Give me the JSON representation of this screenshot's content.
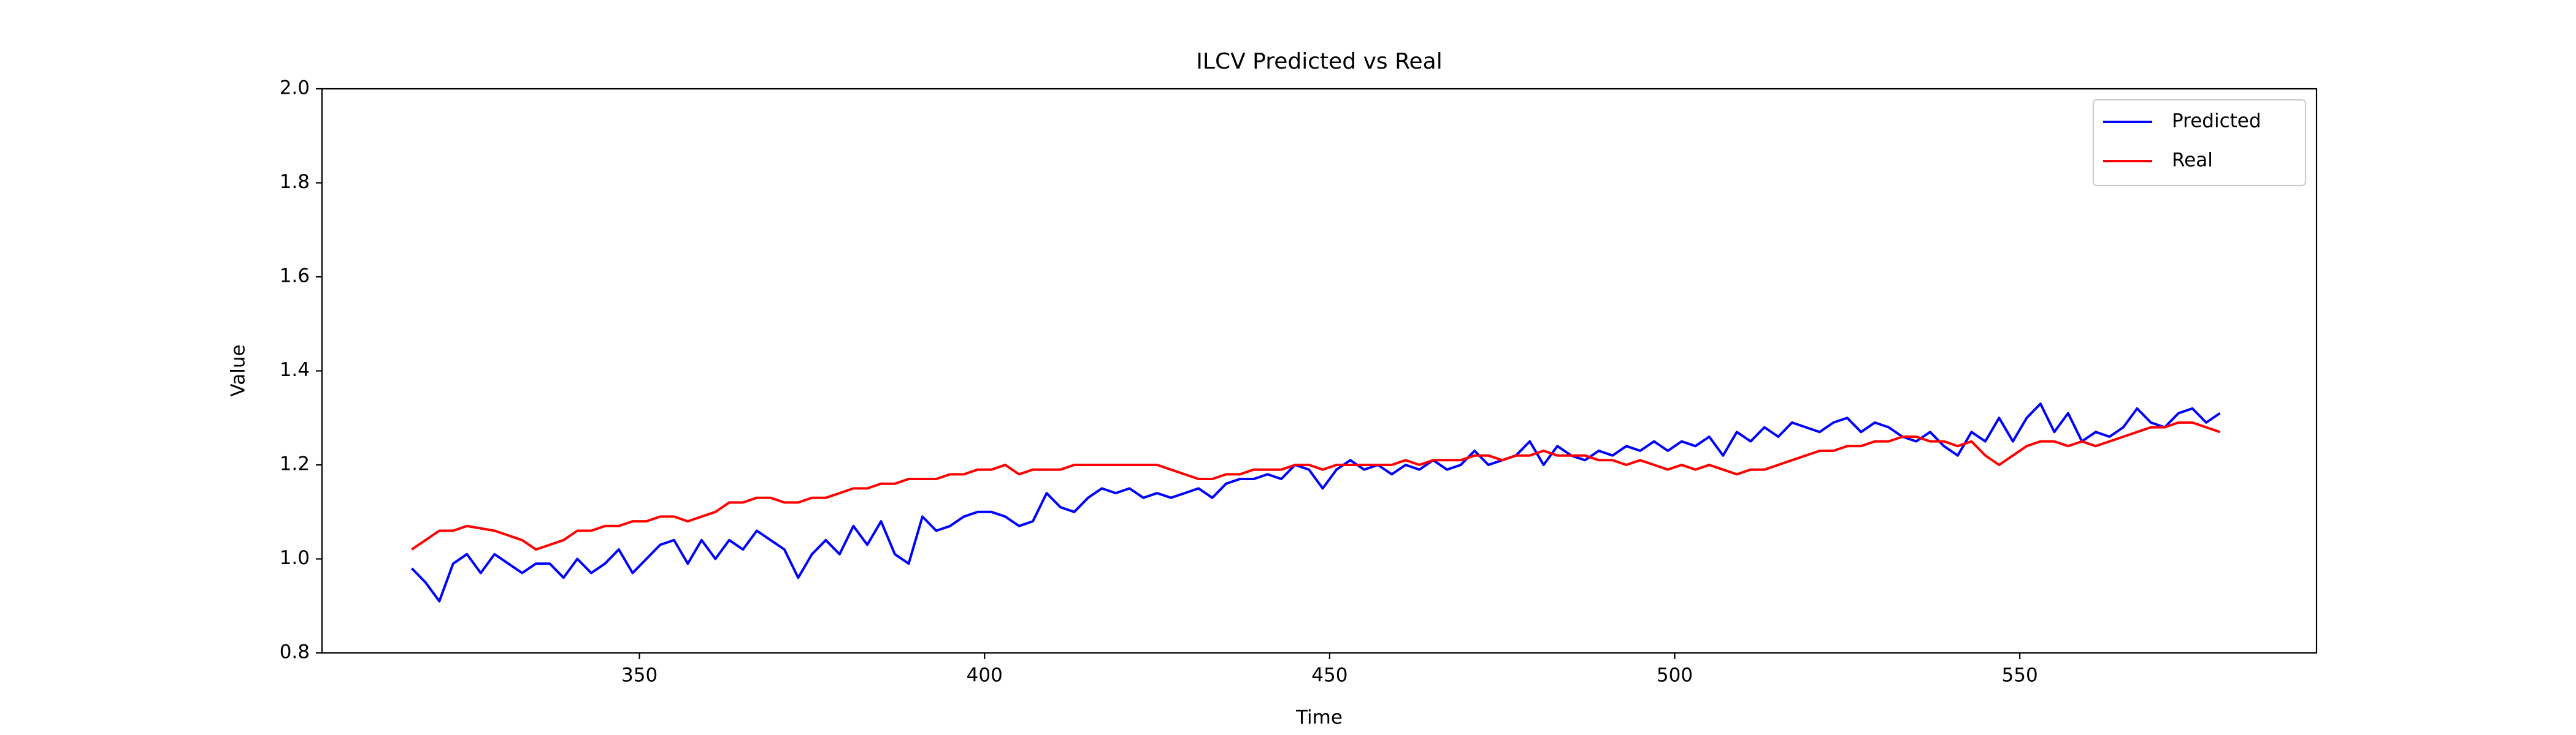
{
  "chart_data": {
    "type": "line",
    "title": "ILCV Predicted vs Real",
    "xlabel": "Time",
    "ylabel": "Value",
    "x": [
      317,
      319,
      321,
      323,
      325,
      327,
      329,
      331,
      333,
      335,
      337,
      339,
      341,
      343,
      345,
      347,
      349,
      351,
      353,
      355,
      357,
      359,
      361,
      363,
      365,
      367,
      369,
      371,
      373,
      375,
      377,
      379,
      381,
      383,
      385,
      387,
      389,
      391,
      393,
      395,
      397,
      399,
      401,
      403,
      405,
      407,
      409,
      411,
      413,
      415,
      417,
      419,
      421,
      423,
      425,
      427,
      429,
      431,
      433,
      435,
      437,
      439,
      441,
      443,
      445,
      447,
      449,
      451,
      453,
      455,
      457,
      459,
      461,
      463,
      465,
      467,
      469,
      471,
      473,
      475,
      477,
      479,
      481,
      483,
      485,
      487,
      489,
      491,
      493,
      495,
      497,
      499,
      501,
      503,
      505,
      507,
      509,
      511,
      513,
      515,
      517,
      519,
      521,
      523,
      525,
      527,
      529,
      531,
      533,
      535,
      537,
      539,
      541,
      543,
      545,
      547,
      549,
      551,
      553,
      555,
      557,
      559,
      561,
      563,
      565,
      567,
      569,
      571,
      573,
      575,
      577,
      579
    ],
    "series": [
      {
        "name": "Predicted",
        "color": "#0000ff",
        "values": [
          0.98,
          0.95,
          0.91,
          0.99,
          1.01,
          0.97,
          1.01,
          0.99,
          0.97,
          0.99,
          0.99,
          0.96,
          1.0,
          0.97,
          0.99,
          1.02,
          0.97,
          1.0,
          1.03,
          1.04,
          0.99,
          1.04,
          1.0,
          1.04,
          1.02,
          1.06,
          1.04,
          1.02,
          0.96,
          1.01,
          1.04,
          1.01,
          1.07,
          1.03,
          1.08,
          1.01,
          0.99,
          1.09,
          1.06,
          1.07,
          1.09,
          1.1,
          1.1,
          1.09,
          1.07,
          1.08,
          1.14,
          1.11,
          1.1,
          1.13,
          1.15,
          1.14,
          1.15,
          1.13,
          1.14,
          1.13,
          1.14,
          1.15,
          1.13,
          1.16,
          1.17,
          1.17,
          1.18,
          1.17,
          1.2,
          1.19,
          1.15,
          1.19,
          1.21,
          1.19,
          1.2,
          1.18,
          1.2,
          1.19,
          1.21,
          1.19,
          1.2,
          1.23,
          1.2,
          1.21,
          1.22,
          1.25,
          1.2,
          1.24,
          1.22,
          1.21,
          1.23,
          1.22,
          1.24,
          1.23,
          1.25,
          1.23,
          1.25,
          1.24,
          1.26,
          1.22,
          1.27,
          1.25,
          1.28,
          1.26,
          1.29,
          1.28,
          1.27,
          1.29,
          1.3,
          1.27,
          1.29,
          1.28,
          1.26,
          1.25,
          1.27,
          1.24,
          1.22,
          1.27,
          1.25,
          1.3,
          1.25,
          1.3,
          1.33,
          1.27,
          1.31,
          1.25,
          1.27,
          1.26,
          1.28,
          1.32,
          1.29,
          1.28,
          1.31,
          1.32,
          1.29,
          1.31
        ]
      },
      {
        "name": "Real",
        "color": "#ff0000",
        "values": [
          1.02,
          1.04,
          1.06,
          1.06,
          1.07,
          1.065,
          1.06,
          1.05,
          1.04,
          1.02,
          1.03,
          1.04,
          1.06,
          1.06,
          1.07,
          1.07,
          1.08,
          1.08,
          1.09,
          1.09,
          1.08,
          1.09,
          1.1,
          1.12,
          1.12,
          1.13,
          1.13,
          1.12,
          1.12,
          1.13,
          1.13,
          1.14,
          1.15,
          1.15,
          1.16,
          1.16,
          1.17,
          1.17,
          1.17,
          1.18,
          1.18,
          1.19,
          1.19,
          1.2,
          1.18,
          1.19,
          1.19,
          1.19,
          1.2,
          1.2,
          1.2,
          1.2,
          1.2,
          1.2,
          1.2,
          1.19,
          1.18,
          1.17,
          1.17,
          1.18,
          1.18,
          1.19,
          1.19,
          1.19,
          1.2,
          1.2,
          1.19,
          1.2,
          1.2,
          1.2,
          1.2,
          1.2,
          1.21,
          1.2,
          1.21,
          1.21,
          1.21,
          1.22,
          1.22,
          1.21,
          1.22,
          1.22,
          1.23,
          1.22,
          1.22,
          1.22,
          1.21,
          1.21,
          1.2,
          1.21,
          1.2,
          1.19,
          1.2,
          1.19,
          1.2,
          1.19,
          1.18,
          1.19,
          1.19,
          1.2,
          1.21,
          1.22,
          1.23,
          1.23,
          1.24,
          1.24,
          1.25,
          1.25,
          1.26,
          1.26,
          1.25,
          1.25,
          1.24,
          1.25,
          1.22,
          1.2,
          1.22,
          1.24,
          1.25,
          1.25,
          1.24,
          1.25,
          1.24,
          1.25,
          1.26,
          1.27,
          1.28,
          1.28,
          1.29,
          1.29,
          1.28,
          1.27
        ]
      }
    ],
    "xlim": [
      304,
      593
    ],
    "xticks": [
      350,
      400,
      450,
      500,
      550
    ],
    "ylim": [
      0.8,
      2.0
    ],
    "yticks": [
      0.8,
      {
        "value": 1.0,
        "label": "1.0"
      },
      1.2,
      1.4,
      1.6,
      1.8,
      {
        "value": 2.0,
        "label": "2.0"
      }
    ],
    "legend": "upper right",
    "grid": false
  }
}
